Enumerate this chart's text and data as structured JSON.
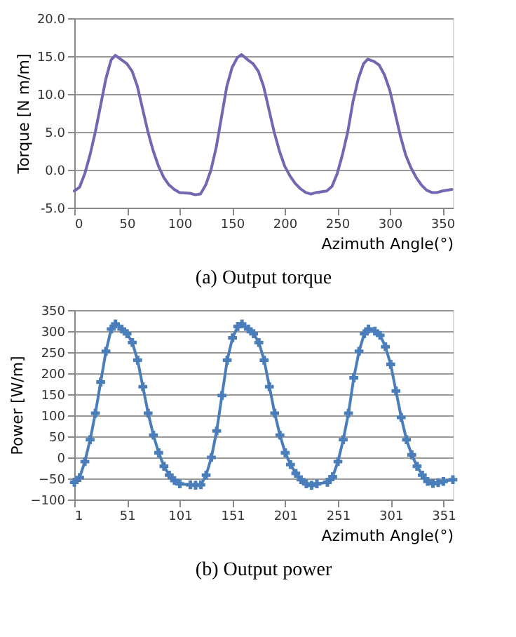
{
  "chart_data": [
    {
      "type": "line",
      "title": "(a)  Output torque",
      "xlabel": "Azimuth Angle(°)",
      "ylabel": "Torque [N m/m]",
      "xlim": [
        0,
        360
      ],
      "xticks": [
        0,
        50,
        100,
        150,
        200,
        250,
        300,
        350
      ],
      "ylim": [
        -5,
        20
      ],
      "yticks": [
        {
          "value": -5,
          "label": "-5.0"
        },
        {
          "value": 0,
          "label": "0.0"
        },
        {
          "value": 5,
          "label": "5.0"
        },
        {
          "value": 10,
          "label": "10.0"
        },
        {
          "value": 15,
          "label": "15.0"
        },
        {
          "value": 20,
          "label": "20.0"
        }
      ],
      "grid": "y",
      "marker": "none",
      "line_style": "solid",
      "series": [
        {
          "color": "#7466b0",
          "x": [
            0,
            5,
            10,
            15,
            20,
            25,
            30,
            35,
            39,
            45,
            50,
            55,
            60,
            65,
            70,
            75,
            80,
            85,
            90,
            95,
            100,
            110,
            115,
            120,
            125,
            130,
            135,
            140,
            145,
            150,
            155,
            159,
            165,
            170,
            175,
            180,
            185,
            190,
            195,
            200,
            205,
            210,
            215,
            220,
            225,
            230,
            240,
            245,
            250,
            255,
            260,
            265,
            270,
            275,
            279,
            285,
            290,
            295,
            300,
            305,
            310,
            315,
            320,
            325,
            330,
            335,
            340,
            345,
            350,
            359
          ],
          "values": [
            -2.8,
            -2.3,
            -0.5,
            2,
            5,
            8.5,
            12,
            14.5,
            15.1,
            14.5,
            14,
            13,
            11,
            8,
            5,
            2.5,
            0.5,
            -1,
            -2,
            -2.6,
            -3,
            -3.1,
            -3.3,
            -3.2,
            -2,
            0,
            3,
            7,
            11,
            13.5,
            14.8,
            15.2,
            14.5,
            14,
            13,
            11,
            8,
            5,
            2.5,
            0.5,
            -0.8,
            -1.8,
            -2.5,
            -3,
            -3.2,
            -3,
            -2.8,
            -2.2,
            -0.5,
            2,
            5,
            9,
            12,
            14,
            14.6,
            14.3,
            13.8,
            12.5,
            10.5,
            7.5,
            4.5,
            2,
            0.3,
            -1,
            -2,
            -2.7,
            -3,
            -3,
            -2.8,
            -2.6
          ]
        }
      ]
    },
    {
      "type": "line",
      "title": "(b)  Output power",
      "xlabel": "Azimuth Angle(°)",
      "ylabel": "Power [W/m]",
      "xlim": [
        1,
        360
      ],
      "xticks": [
        1,
        51,
        101,
        151,
        201,
        251,
        301,
        351
      ],
      "ylim": [
        -100,
        350
      ],
      "yticks": [
        -100,
        -50,
        0,
        50,
        100,
        150,
        200,
        250,
        300,
        350
      ],
      "grid": "y",
      "marker": "cross",
      "line_style": "solid",
      "series": [
        {
          "color": "#4a7ebb",
          "x": [
            1,
            6,
            11,
            16,
            21,
            26,
            31,
            36,
            40,
            46,
            51,
            56,
            61,
            66,
            71,
            76,
            81,
            86,
            91,
            96,
            101,
            111,
            116,
            121,
            126,
            131,
            136,
            141,
            146,
            151,
            156,
            160,
            166,
            171,
            176,
            181,
            186,
            191,
            196,
            201,
            206,
            211,
            216,
            221,
            226,
            231,
            241,
            246,
            251,
            256,
            261,
            266,
            271,
            276,
            280,
            286,
            291,
            296,
            301,
            306,
            311,
            316,
            321,
            326,
            331,
            336,
            341,
            346,
            351,
            360
          ],
          "values": [
            -59,
            -48,
            -10,
            42,
            105,
            179,
            252,
            305,
            317,
            305,
            294,
            273,
            231,
            168,
            105,
            53,
            11,
            -21,
            -42,
            -55,
            -63,
            -65,
            -66,
            -65,
            -42,
            0,
            63,
            147,
            231,
            284,
            311,
            317,
            305,
            294,
            273,
            231,
            168,
            105,
            53,
            11,
            -17,
            -38,
            -53,
            -63,
            -66,
            -63,
            -59,
            -46,
            -10,
            42,
            105,
            189,
            252,
            294,
            305,
            300,
            290,
            263,
            221,
            158,
            95,
            42,
            6,
            -21,
            -42,
            -57,
            -62,
            -60,
            -57,
            -53
          ]
        }
      ]
    }
  ]
}
